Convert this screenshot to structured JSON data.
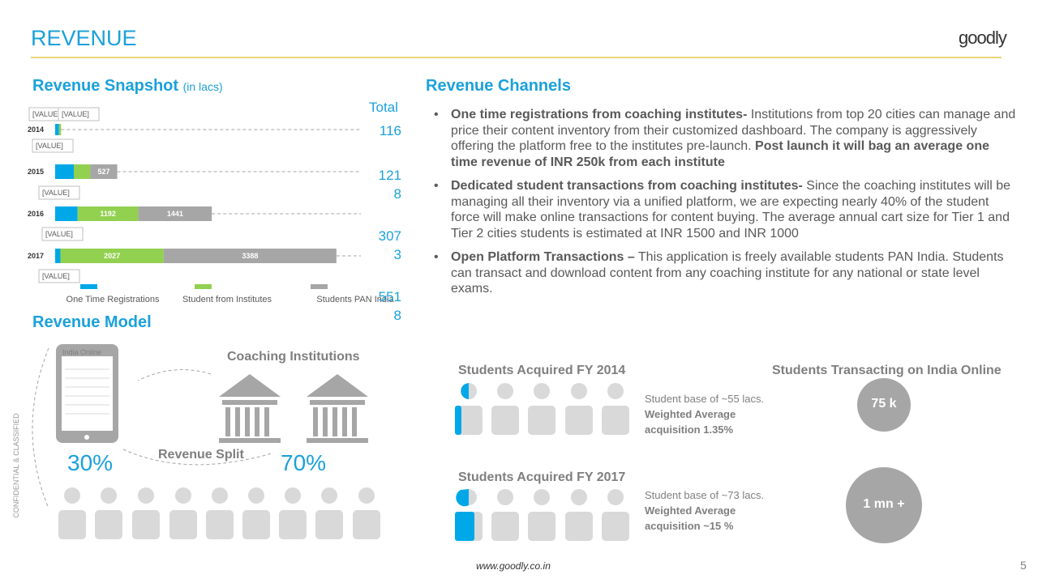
{
  "header": {
    "title": "REVENUE",
    "logo": "goodly"
  },
  "snapshot": {
    "title": "Revenue Snapshot",
    "unit": "(in lacs)",
    "type": "bar",
    "stacked": true,
    "categories": [
      "2014",
      "2015",
      "2016",
      "2017"
    ],
    "series": [
      {
        "name": "One Time Registrations",
        "color": "#00a8e8",
        "values": [
          76,
          366,
          440,
          103
        ]
      },
      {
        "name": "Student from Institutes",
        "color": "#92d050",
        "values": [
          40,
          325,
          1192,
          2027
        ]
      },
      {
        "name": "Students PAN India",
        "color": "#a6a6a6",
        "values": [
          0,
          527,
          1441,
          3388
        ]
      }
    ],
    "xlim": [
      0,
      5600
    ],
    "totals_label": "Total",
    "totals": [
      116,
      1218,
      3073,
      5518
    ],
    "callouts": [
      "[VALUE]",
      "[VALUE]",
      "[VALUE]",
      "[VALUE]",
      "[VALUE]",
      "[VALUE]"
    ]
  },
  "model": {
    "title": "Revenue Model",
    "device_label": "India Online",
    "institutions_label": "Coaching Institutions",
    "split_label": "Revenue Split",
    "left_share": "30%",
    "right_share": "70%"
  },
  "channels": {
    "title": "Revenue Channels",
    "items": [
      [
        {
          "text": "One time registrations from coaching institutes-",
          "bold": true
        },
        {
          "text": " Institutions from top 20 cities can manage and price their content inventory from their customized dashboard. The company is aggressively offering the platform free to the institutes pre-launch. ",
          "bold": false
        },
        {
          "text": "Post launch it will bag an average one time revenue of INR 250k from each institute",
          "bold": true
        }
      ],
      [
        {
          "text": "Dedicated student transactions from coaching institutes-",
          "bold": true
        },
        {
          "text": " Since the coaching institutes will be managing all their inventory via a unified platform, we are expecting nearly 40% of the student force will make online transactions for content buying. The average annual cart size for Tier 1 and Tier 2 cities students is estimated at INR 1500 and INR 1000",
          "bold": false
        }
      ],
      [
        {
          "text": "Open Platform Transactions –",
          "bold": true
        },
        {
          "text": " This application is freely available students PAN India. Students can transact and download content from any coaching institute for any national or state level exams.",
          "bold": false
        }
      ]
    ]
  },
  "acquired": [
    {
      "title": "Students Acquired FY 2014",
      "desc": [
        {
          "text": "Student base of ~55 lacs. ",
          "bold": false
        },
        {
          "text": "Weighted Average acquisition 1.35%",
          "bold": true
        }
      ],
      "bubble": "75 k"
    },
    {
      "title": "Students Acquired FY 2017",
      "desc": [
        {
          "text": "Student base of ~73 lacs. ",
          "bold": false
        },
        {
          "text": "Weighted Average acquisition ~15 %",
          "bold": true
        }
      ],
      "bubble": "1 mn +"
    }
  ],
  "transacting_title": "Students Transacting on India Online",
  "footer": {
    "url": "www.goodly.co.in",
    "page": "5",
    "confidential": "CONFIDENTIAL & CLASSIFIED"
  }
}
